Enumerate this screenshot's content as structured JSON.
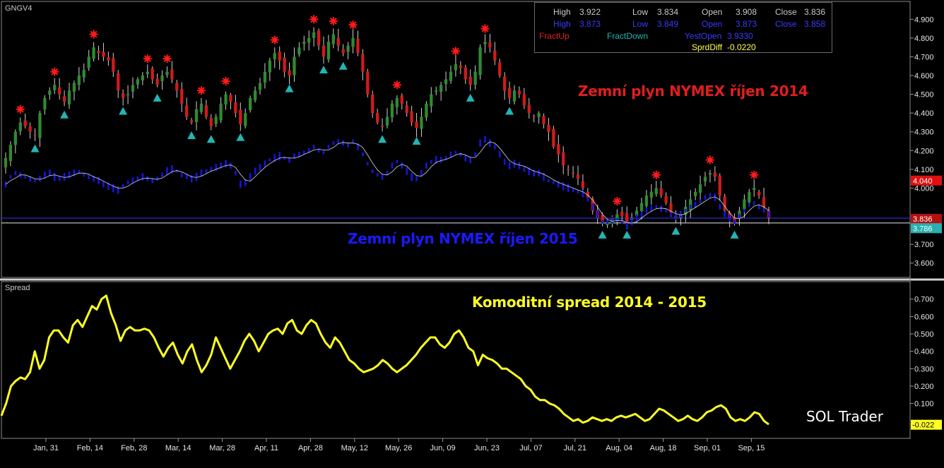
{
  "header": {
    "symbol": "GNGV4"
  },
  "info_panel": {
    "row1": {
      "high_label": "High",
      "high_value": "3.922",
      "low_label": "Low",
      "low_value": "3.834",
      "open_label": "Open",
      "open_value": "3.908",
      "close_label": "Close",
      "close_value": "3.836"
    },
    "row2": {
      "high_label": "High",
      "high_value": "3.873",
      "low_label": "Low",
      "low_value": "3.849",
      "open_label": "Open",
      "open_value": "3.873",
      "close_label": "Close",
      "close_value": "3.858"
    },
    "row3": {
      "fractup_label": "FractUp",
      "fractdown_label": "FractDown",
      "yestopen_label": "YestOpen",
      "yestopen_value": "3.9330"
    },
    "row4": {
      "sprddiff_label": "SprdDiff",
      "sprddiff_value": "-0.0220"
    }
  },
  "annotations": {
    "series_2014": "Zemní plyn NYMEX  říjen 2014",
    "series_2015": "Zemní plyn NYMEX  říjen 2015",
    "spread": "Komoditní spread 2014 - 2015",
    "watermark": "SOL Trader"
  },
  "colors": {
    "background": "#000000",
    "up_candle": "#2e8b2e",
    "down_candle": "#d11a1a",
    "blue_series": "#1515e0",
    "spread_line": "#ffff22",
    "fractal_up": "#ff1a1a",
    "fractal_down": "#22b5b5",
    "label_2014": "#e01e1e",
    "label_2015": "#1a1aff"
  },
  "chart_data": [
    {
      "type": "candlestick",
      "title": "",
      "ylim": [
        3.55,
        4.95
      ],
      "y_ticks": [
        "4.900",
        "4.800",
        "4.700",
        "4.600",
        "4.500",
        "4.400",
        "4.300",
        "4.200",
        "4.100",
        "4.000",
        "3.700",
        "3.600"
      ],
      "x_ticks": [
        "Jan, 31",
        "Feb, 14",
        "Feb, 28",
        "Mar, 14",
        "Mar, 28",
        "Apr, 11",
        "Apr, 28",
        "May, 12",
        "May, 26",
        "Jun, 09",
        "Jun, 23",
        "Jul, 07",
        "Jul, 21",
        "Aug, 04",
        "Aug, 18",
        "Sep, 01",
        "Sep, 15"
      ],
      "price_labels": {
        "red": "4.040",
        "red_dark": "3.836",
        "teal": "3.786"
      },
      "horizontal_lines": [
        3.84,
        3.814
      ],
      "series_2014_close": [
        4.16,
        4.23,
        4.3,
        4.35,
        4.33,
        4.3,
        4.28,
        4.4,
        4.48,
        4.52,
        4.55,
        4.5,
        4.46,
        4.52,
        4.56,
        4.6,
        4.63,
        4.7,
        4.75,
        4.72,
        4.7,
        4.68,
        4.62,
        4.52,
        4.48,
        4.5,
        4.55,
        4.58,
        4.6,
        4.62,
        4.58,
        4.55,
        4.6,
        4.62,
        4.58,
        4.52,
        4.45,
        4.38,
        4.35,
        4.42,
        4.45,
        4.38,
        4.33,
        4.38,
        4.45,
        4.5,
        4.46,
        4.4,
        4.34,
        4.4,
        4.48,
        4.52,
        4.56,
        4.62,
        4.68,
        4.72,
        4.68,
        4.62,
        4.6,
        4.7,
        4.75,
        4.78,
        4.8,
        4.83,
        4.76,
        4.7,
        4.78,
        4.82,
        4.76,
        4.72,
        4.76,
        4.8,
        4.72,
        4.62,
        4.5,
        4.4,
        4.35,
        4.33,
        4.38,
        4.45,
        4.48,
        4.45,
        4.4,
        4.35,
        4.32,
        4.38,
        4.45,
        4.5,
        4.52,
        4.55,
        4.58,
        4.62,
        4.66,
        4.64,
        4.58,
        4.55,
        4.62,
        4.75,
        4.78,
        4.75,
        4.68,
        4.6,
        4.52,
        4.48,
        4.52,
        4.5,
        4.44,
        4.4,
        4.38,
        4.4,
        4.34,
        4.3,
        4.22,
        4.18,
        4.12,
        4.1,
        4.08,
        4.05,
        4.0,
        3.95,
        3.88,
        3.84,
        3.82,
        3.82,
        3.84,
        3.86,
        3.85,
        3.82,
        3.84,
        3.88,
        3.92,
        3.96,
        3.98,
        4.0,
        3.96,
        3.92,
        3.87,
        3.84,
        3.86,
        3.9,
        3.94,
        3.98,
        4.02,
        4.06,
        4.08,
        4.06,
        3.96,
        3.88,
        3.84,
        3.82,
        3.88,
        3.94,
        3.98,
        4.0,
        3.96,
        3.9,
        3.84
      ],
      "series_2015_close": [
        4.02,
        4.06,
        4.08,
        4.07,
        4.06,
        4.05,
        4.04,
        4.05,
        4.07,
        4.08,
        4.06,
        4.05,
        4.06,
        4.07,
        4.08,
        4.09,
        4.07,
        4.06,
        4.05,
        4.04,
        4.02,
        4.01,
        4.0,
        3.99,
        4.01,
        4.03,
        4.04,
        4.05,
        4.06,
        4.05,
        4.04,
        4.05,
        4.07,
        4.09,
        4.1,
        4.09,
        4.07,
        4.06,
        4.05,
        4.06,
        4.08,
        4.09,
        4.1,
        4.11,
        4.12,
        4.13,
        4.12,
        4.08,
        4.02,
        4.03,
        4.06,
        4.09,
        4.11,
        4.13,
        4.15,
        4.16,
        4.17,
        4.16,
        4.15,
        4.17,
        4.18,
        4.19,
        4.2,
        4.22,
        4.2,
        4.19,
        4.22,
        4.24,
        4.25,
        4.24,
        4.23,
        4.25,
        4.22,
        4.18,
        4.13,
        4.09,
        4.07,
        4.06,
        4.08,
        4.12,
        4.14,
        4.12,
        4.09,
        4.06,
        4.05,
        4.08,
        4.12,
        4.14,
        4.15,
        4.15,
        4.16,
        4.18,
        4.19,
        4.18,
        4.16,
        4.15,
        4.18,
        4.24,
        4.26,
        4.24,
        4.22,
        4.18,
        4.14,
        4.12,
        4.13,
        4.12,
        4.1,
        4.09,
        4.08,
        4.08,
        4.06,
        4.04,
        4.03,
        4.02,
        4.01,
        4.0,
        3.99,
        3.98,
        3.97,
        3.94,
        3.9,
        3.86,
        3.82,
        3.82,
        3.83,
        3.83,
        3.82,
        3.8,
        3.82,
        3.84,
        3.86,
        3.88,
        3.89,
        3.9,
        3.89,
        3.88,
        3.86,
        3.85,
        3.86,
        3.88,
        3.9,
        3.91,
        3.93,
        3.95,
        3.96,
        3.95,
        3.9,
        3.86,
        3.84,
        3.82,
        3.85,
        3.88,
        3.91,
        3.92,
        3.9,
        3.88,
        3.86
      ]
    },
    {
      "type": "line",
      "title": "Spread",
      "ylim": [
        -0.08,
        0.78
      ],
      "y_ticks": [
        "0.700",
        "0.600",
        "0.500",
        "0.400",
        "0.300",
        "0.200",
        "0.100"
      ],
      "last_value_label": "-0.022",
      "values": [
        0.03,
        0.1,
        0.2,
        0.23,
        0.25,
        0.24,
        0.28,
        0.4,
        0.3,
        0.35,
        0.48,
        0.52,
        0.52,
        0.48,
        0.45,
        0.55,
        0.58,
        0.54,
        0.6,
        0.66,
        0.64,
        0.7,
        0.72,
        0.62,
        0.55,
        0.46,
        0.52,
        0.54,
        0.52,
        0.52,
        0.53,
        0.52,
        0.48,
        0.42,
        0.37,
        0.42,
        0.45,
        0.38,
        0.33,
        0.4,
        0.44,
        0.35,
        0.28,
        0.32,
        0.38,
        0.48,
        0.42,
        0.36,
        0.3,
        0.35,
        0.4,
        0.46,
        0.5,
        0.46,
        0.4,
        0.45,
        0.5,
        0.52,
        0.53,
        0.5,
        0.56,
        0.58,
        0.52,
        0.5,
        0.55,
        0.58,
        0.56,
        0.5,
        0.45,
        0.42,
        0.48,
        0.45,
        0.4,
        0.35,
        0.33,
        0.3,
        0.28,
        0.29,
        0.3,
        0.32,
        0.35,
        0.33,
        0.3,
        0.28,
        0.3,
        0.32,
        0.35,
        0.38,
        0.42,
        0.45,
        0.48,
        0.48,
        0.44,
        0.42,
        0.45,
        0.5,
        0.52,
        0.48,
        0.42,
        0.4,
        0.32,
        0.38,
        0.36,
        0.35,
        0.33,
        0.3,
        0.3,
        0.28,
        0.26,
        0.24,
        0.2,
        0.18,
        0.14,
        0.12,
        0.12,
        0.1,
        0.09,
        0.07,
        0.04,
        0.02,
        0.0,
        0.01,
        -0.01,
        0.0,
        0.02,
        0.01,
        0.0,
        0.01,
        0.0,
        0.02,
        0.03,
        0.02,
        0.03,
        0.04,
        0.02,
        0.0,
        0.01,
        0.04,
        0.07,
        0.06,
        0.04,
        0.02,
        0.0,
        0.01,
        0.03,
        0.01,
        0.0,
        0.02,
        0.05,
        0.06,
        0.08,
        0.09,
        0.07,
        0.02,
        0.0,
        0.01,
        0.0,
        0.02,
        0.05,
        0.04,
        0.0,
        -0.02
      ]
    }
  ]
}
